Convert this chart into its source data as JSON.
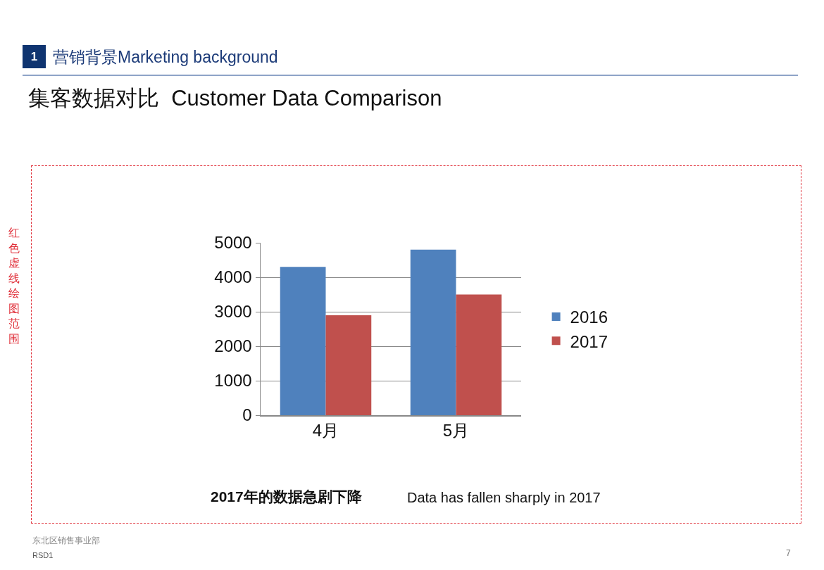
{
  "chart_data": {
    "type": "bar",
    "title": "集客数据对比  Customer Data Comparison",
    "categories": [
      "4月",
      "5月"
    ],
    "series": [
      {
        "name": "2016",
        "color": "#4f81bd",
        "values": [
          4300,
          4800
        ]
      },
      {
        "name": "2017",
        "color": "#c0504d",
        "values": [
          2900,
          3500
        ]
      }
    ],
    "ylim": [
      0,
      5000
    ],
    "yticks": [
      0,
      1000,
      2000,
      3000,
      4000,
      5000
    ],
    "grid": "y",
    "legend": "right",
    "annotations": [
      "1",
      "营销背景Marketing background",
      "红色虚线绘图范围",
      "2017年的数据急剧下降",
      "Data has fallen sharply in 2017",
      "东北区销售事业部",
      "RSD1",
      "7"
    ]
  }
}
